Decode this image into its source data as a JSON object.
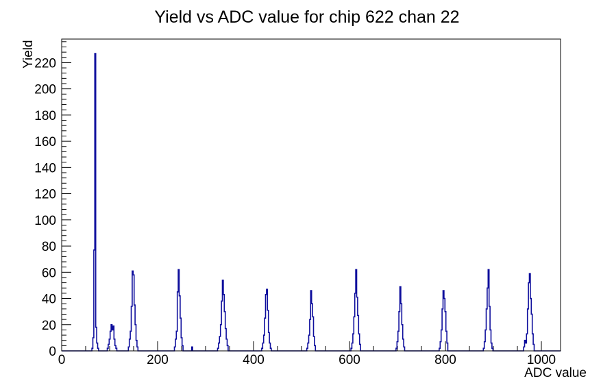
{
  "page": {
    "background_color": "#ffffff",
    "text_color": "#000000"
  },
  "chart_data": {
    "type": "bar",
    "style": "histogram-step-outline",
    "title": "Yield vs ADC value for chip 622 chan 22",
    "xlabel": "ADC value",
    "ylabel": "Yield",
    "xlim": [
      0,
      1040
    ],
    "ylim": [
      0,
      238
    ],
    "grid": false,
    "legend": false,
    "line_color": "#0e0e9c",
    "frame_color": "#000000",
    "x_major_ticks": [
      0,
      200,
      400,
      600,
      800,
      1000
    ],
    "x_minor_step": 50,
    "y_major_ticks": [
      0,
      20,
      40,
      60,
      80,
      100,
      120,
      140,
      160,
      180,
      200,
      220
    ],
    "y_minor_step": 4,
    "bin_half_width": 1,
    "peaks": [
      {
        "adc": 70,
        "yield": 227
      },
      {
        "adc": 104,
        "yield": 20
      },
      {
        "adc": 148,
        "yield": 61
      },
      {
        "adc": 244,
        "yield": 62
      },
      {
        "adc": 336,
        "yield": 54
      },
      {
        "adc": 428,
        "yield": 47
      },
      {
        "adc": 520,
        "yield": 46
      },
      {
        "adc": 614,
        "yield": 62
      },
      {
        "adc": 706,
        "yield": 49
      },
      {
        "adc": 796,
        "yield": 46
      },
      {
        "adc": 890,
        "yield": 62
      },
      {
        "adc": 976,
        "yield": 59
      }
    ],
    "bins": [
      [
        64,
        2
      ],
      [
        66,
        10
      ],
      [
        68,
        77
      ],
      [
        70,
        227
      ],
      [
        72,
        18
      ],
      [
        74,
        6
      ],
      [
        76,
        2
      ],
      [
        96,
        2
      ],
      [
        98,
        5
      ],
      [
        100,
        9
      ],
      [
        102,
        15
      ],
      [
        104,
        20
      ],
      [
        106,
        16
      ],
      [
        108,
        19
      ],
      [
        110,
        9
      ],
      [
        112,
        4
      ],
      [
        114,
        2
      ],
      [
        140,
        3
      ],
      [
        142,
        9
      ],
      [
        144,
        15
      ],
      [
        146,
        34
      ],
      [
        148,
        61
      ],
      [
        150,
        58
      ],
      [
        152,
        35
      ],
      [
        154,
        20
      ],
      [
        156,
        8
      ],
      [
        158,
        3
      ],
      [
        236,
        3
      ],
      [
        238,
        9
      ],
      [
        240,
        15
      ],
      [
        242,
        45
      ],
      [
        244,
        62
      ],
      [
        246,
        42
      ],
      [
        248,
        25
      ],
      [
        250,
        10
      ],
      [
        252,
        4
      ],
      [
        272,
        3
      ],
      [
        326,
        2
      ],
      [
        328,
        6
      ],
      [
        330,
        11
      ],
      [
        332,
        20
      ],
      [
        334,
        38
      ],
      [
        336,
        54
      ],
      [
        338,
        43
      ],
      [
        340,
        30
      ],
      [
        342,
        17
      ],
      [
        344,
        9
      ],
      [
        346,
        4
      ],
      [
        418,
        2
      ],
      [
        420,
        6
      ],
      [
        422,
        12
      ],
      [
        424,
        25
      ],
      [
        426,
        43
      ],
      [
        428,
        47
      ],
      [
        430,
        31
      ],
      [
        432,
        14
      ],
      [
        434,
        6
      ],
      [
        436,
        2
      ],
      [
        512,
        2
      ],
      [
        514,
        6
      ],
      [
        516,
        12
      ],
      [
        518,
        24
      ],
      [
        520,
        46
      ],
      [
        522,
        36
      ],
      [
        524,
        26
      ],
      [
        526,
        11
      ],
      [
        528,
        4
      ],
      [
        604,
        2
      ],
      [
        606,
        6
      ],
      [
        608,
        13
      ],
      [
        610,
        26
      ],
      [
        612,
        44
      ],
      [
        614,
        62
      ],
      [
        616,
        41
      ],
      [
        618,
        27
      ],
      [
        620,
        13
      ],
      [
        622,
        5
      ],
      [
        698,
        2
      ],
      [
        700,
        7
      ],
      [
        702,
        15
      ],
      [
        704,
        30
      ],
      [
        706,
        49
      ],
      [
        708,
        36
      ],
      [
        710,
        20
      ],
      [
        712,
        9
      ],
      [
        714,
        3
      ],
      [
        788,
        2
      ],
      [
        790,
        7
      ],
      [
        792,
        16
      ],
      [
        794,
        32
      ],
      [
        796,
        46
      ],
      [
        798,
        40
      ],
      [
        800,
        30
      ],
      [
        802,
        15
      ],
      [
        804,
        6
      ],
      [
        880,
        2
      ],
      [
        882,
        7
      ],
      [
        884,
        16
      ],
      [
        886,
        32
      ],
      [
        888,
        48
      ],
      [
        890,
        62
      ],
      [
        892,
        34
      ],
      [
        894,
        16
      ],
      [
        896,
        6
      ],
      [
        898,
        2
      ],
      [
        964,
        3
      ],
      [
        966,
        8
      ],
      [
        968,
        6
      ],
      [
        970,
        13
      ],
      [
        972,
        32
      ],
      [
        974,
        52
      ],
      [
        976,
        59
      ],
      [
        978,
        40
      ],
      [
        980,
        28
      ],
      [
        982,
        13
      ],
      [
        984,
        5
      ]
    ]
  }
}
